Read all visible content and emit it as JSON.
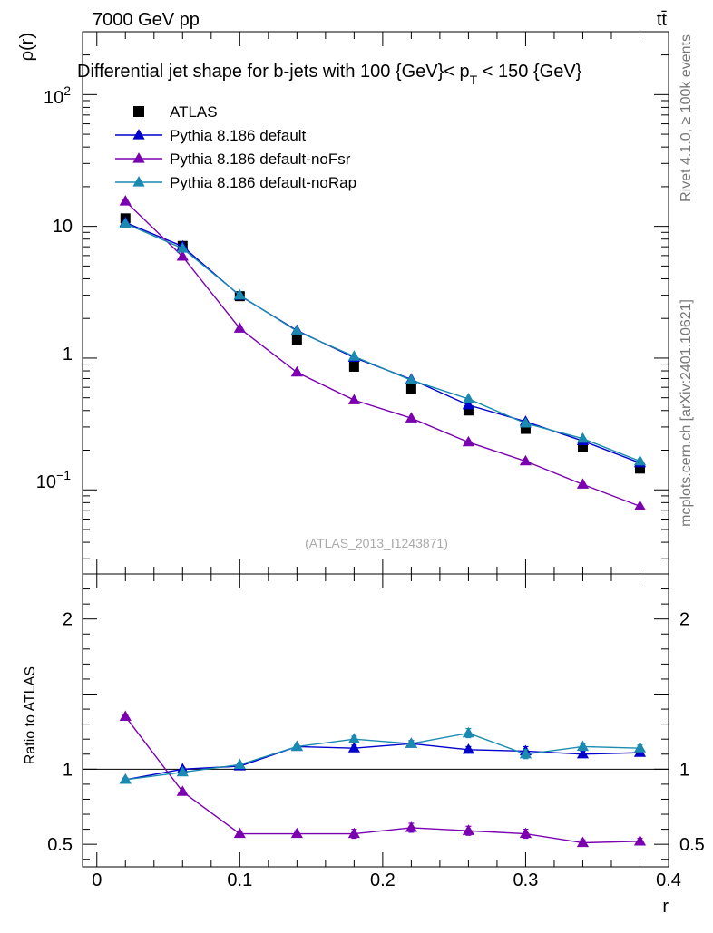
{
  "header": {
    "energy_label": "7000 GeV pp",
    "process_label": "tt̄",
    "side_label_top": "Rivet 4.1.0, ≥ 100k events",
    "side_label_bottom": "mcplots.cern.ch [arXiv:2401.10621]"
  },
  "chart_data": [
    {
      "type": "line",
      "title": "Differential jet shape for b-jets with 100 {GeV}< p_T < 150 {GeV}",
      "title_main": "Differential jet shape for b-jets with 100 {GeV}< p",
      "title_sub": "T",
      "title_tail": " < 150 {GeV}",
      "ylabel": "ρ(r)",
      "xlabel": "r",
      "yscale": "log",
      "ylim": [
        0.023,
        300
      ],
      "xlim": [
        -0.01,
        0.4
      ],
      "watermark": "(ATLAS_2013_I1243871)",
      "ytick_labels": [
        {
          "value": 100,
          "base": "10",
          "exp": "2"
        },
        {
          "value": 10,
          "base": "10",
          "exp": ""
        },
        {
          "value": 1,
          "base": "1",
          "exp": ""
        },
        {
          "value": 0.1,
          "base": "10",
          "exp": "−1"
        }
      ],
      "x": [
        0.02,
        0.06,
        0.1,
        0.14,
        0.18,
        0.22,
        0.26,
        0.3,
        0.34,
        0.38
      ],
      "series": [
        {
          "name": "ATLAS",
          "kind": "data",
          "color": "#000000",
          "values": [
            11.5,
            7.1,
            2.95,
            1.38,
            0.86,
            0.58,
            0.4,
            0.29,
            0.21,
            0.145
          ]
        },
        {
          "name": "Pythia 8.186 default",
          "kind": "mc",
          "color": "#0000cc",
          "values": [
            10.7,
            7.05,
            2.98,
            1.62,
            1.01,
            0.69,
            0.44,
            0.33,
            0.235,
            0.16
          ]
        },
        {
          "name": "Pythia 8.186 default-noFsr",
          "kind": "mc",
          "color": "#7a00b0",
          "values": [
            15.5,
            5.9,
            1.68,
            0.78,
            0.48,
            0.35,
            0.23,
            0.165,
            0.11,
            0.075
          ]
        },
        {
          "name": "Pythia 8.186 default-noRap",
          "kind": "mc",
          "color": "#1a8ab0",
          "values": [
            10.5,
            6.8,
            3.0,
            1.6,
            1.03,
            0.68,
            0.49,
            0.32,
            0.245,
            0.165
          ]
        }
      ]
    },
    {
      "type": "line",
      "title": "",
      "ylabel": "Ratio to ATLAS",
      "xlabel": "r",
      "ylim": [
        0.35,
        2.3
      ],
      "xlim": [
        -0.01,
        0.4
      ],
      "reference_line": 1,
      "yticks": [
        0.5,
        1,
        2
      ],
      "ytick_labels": [
        "0.5",
        "1",
        "2"
      ],
      "xticks": [
        0,
        0.1,
        0.2,
        0.3,
        0.4
      ],
      "xtick_labels": [
        "0",
        "0.1",
        "0.2",
        "0.3",
        "0.4"
      ],
      "x": [
        0.02,
        0.06,
        0.1,
        0.14,
        0.18,
        0.22,
        0.26,
        0.3,
        0.34,
        0.38
      ],
      "series": [
        {
          "name": "Pythia 8.186 default",
          "color": "#0000cc",
          "values": [
            0.93,
            1.0,
            1.02,
            1.15,
            1.14,
            1.17,
            1.13,
            1.12,
            1.1,
            1.11
          ],
          "errors": [
            0.01,
            0.01,
            0.01,
            0.01,
            0.02,
            0.02,
            0.02,
            0.03,
            0.02,
            0.02
          ]
        },
        {
          "name": "Pythia 8.186 default-noFsr",
          "color": "#7a00b0",
          "values": [
            1.35,
            0.85,
            0.57,
            0.57,
            0.57,
            0.61,
            0.59,
            0.57,
            0.51,
            0.52
          ],
          "errors": [
            0.01,
            0.01,
            0.01,
            0.02,
            0.03,
            0.03,
            0.03,
            0.03,
            0.02,
            0.02
          ]
        },
        {
          "name": "Pythia 8.186 default-noRap",
          "color": "#1a8ab0",
          "values": [
            0.93,
            0.98,
            1.03,
            1.15,
            1.2,
            1.17,
            1.24,
            1.1,
            1.15,
            1.14
          ],
          "errors": [
            0.01,
            0.01,
            0.01,
            0.01,
            0.02,
            0.02,
            0.03,
            0.03,
            0.02,
            0.02
          ]
        }
      ]
    }
  ]
}
